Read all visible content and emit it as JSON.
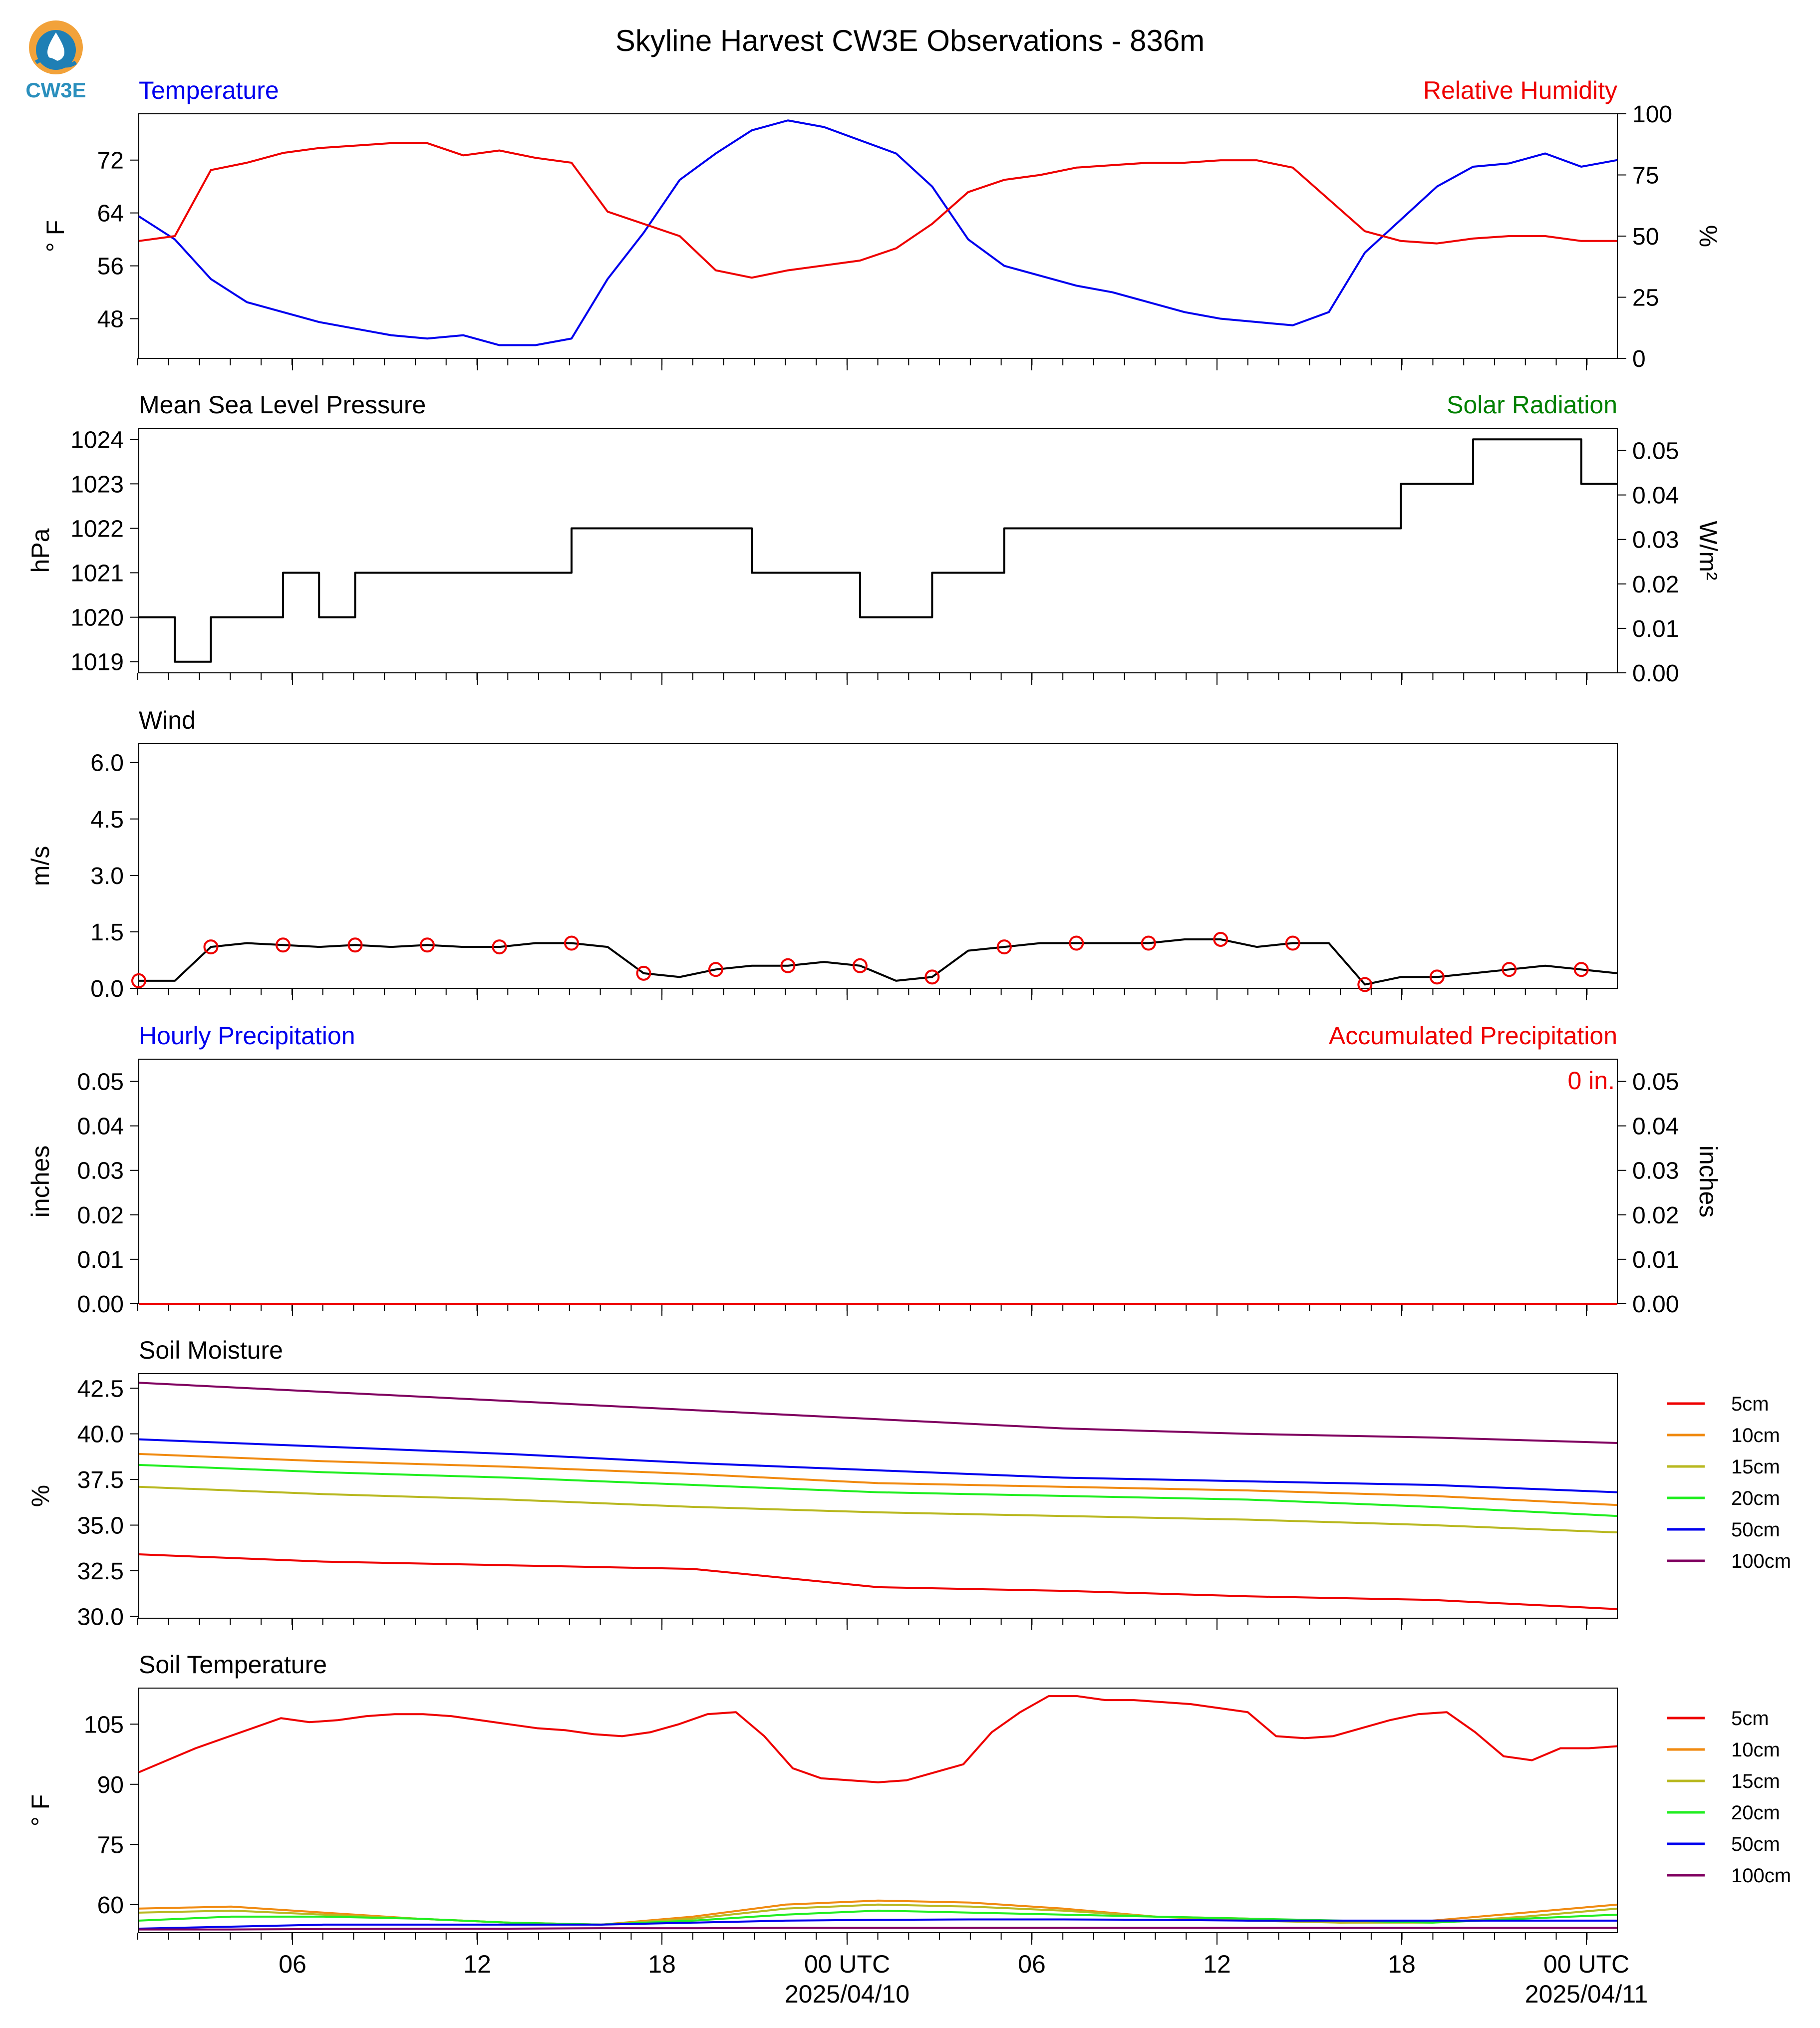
{
  "figure": {
    "title": "Skyline Harvest CW3E Observations - 836m",
    "logo_text": "CW3E",
    "logo_icon": "water-drop-logo-icon"
  },
  "time_axis": {
    "ticks": [
      {
        "label": "06",
        "date": ""
      },
      {
        "label": "12",
        "date": ""
      },
      {
        "label": "18",
        "date": ""
      },
      {
        "label": "00 UTC",
        "date": "2025/04/10"
      },
      {
        "label": "06",
        "date": ""
      },
      {
        "label": "12",
        "date": ""
      },
      {
        "label": "18",
        "date": ""
      },
      {
        "label": "00 UTC",
        "date": "2025/04/11"
      }
    ]
  },
  "chart_data": [
    {
      "type": "line",
      "title_left": "Temperature",
      "title_right": "Relative Humidity",
      "ylabel_left": "° F",
      "ylabel_right": "%",
      "ylim_left": [
        42,
        79
      ],
      "yticks_left": [
        48,
        56,
        64,
        72
      ],
      "ylim_right": [
        0,
        100
      ],
      "yticks_right": [
        0,
        25,
        50,
        75,
        100
      ],
      "grid": false,
      "series": [
        {
          "axis": "left",
          "color": "#0000ee",
          "values": [
            63.5,
            60,
            54,
            50.5,
            49,
            47.5,
            46.5,
            45.5,
            45,
            45.5,
            44,
            44,
            45,
            54,
            61,
            69,
            73,
            76.5,
            78,
            77,
            75,
            73,
            68,
            60,
            56,
            54.5,
            53,
            52,
            50.5,
            49,
            48,
            47.5,
            47,
            49,
            58,
            63,
            68,
            71,
            71.5,
            73,
            71,
            72
          ]
        },
        {
          "axis": "right",
          "color": "#ee0000",
          "values": [
            48,
            50,
            77,
            80,
            84,
            86,
            87,
            88,
            88,
            83,
            85,
            82,
            80,
            60,
            55,
            50,
            36,
            33,
            36,
            38,
            40,
            45,
            55,
            68,
            73,
            75,
            78,
            79,
            80,
            80,
            81,
            81,
            78,
            65,
            52,
            48,
            47,
            49,
            50,
            50,
            48,
            48
          ]
        }
      ]
    },
    {
      "type": "line",
      "title_left": "Mean Sea Level Pressure",
      "title_right": "Solar Radiation",
      "ylabel_left": "hPa",
      "ylabel_right": "W/m²",
      "ylim_left": [
        1018.75,
        1024.25
      ],
      "yticks_left": [
        1019,
        1020,
        1021,
        1022,
        1023,
        1024
      ],
      "ylim_right": [
        0,
        0.055
      ],
      "yticks_right": [
        "0.00",
        "0.01",
        "0.02",
        "0.03",
        "0.04",
        "0.05"
      ],
      "grid": false,
      "series": [
        {
          "axis": "left",
          "color": "#000000",
          "values": [
            1020,
            1019,
            1020,
            1020,
            1021,
            1020,
            1021,
            1021,
            1021,
            1021,
            1021,
            1021,
            1022,
            1022,
            1022,
            1022,
            1022,
            1021,
            1021,
            1021,
            1020,
            1020,
            1021,
            1021,
            1022,
            1022,
            1022,
            1022,
            1022,
            1022,
            1022,
            1022,
            1022,
            1022,
            1022,
            1023,
            1023,
            1024,
            1024,
            1024,
            1023,
            1023
          ]
        }
      ]
    },
    {
      "type": "line",
      "title_left": "Wind",
      "ylabel_left": "m/s",
      "ylim_left": [
        0,
        6.5
      ],
      "yticks_left": [
        "0.0",
        "1.5",
        "3.0",
        "4.5",
        "6.0"
      ],
      "grid": false,
      "series": [
        {
          "axis": "left",
          "color": "#000000",
          "values": [
            0.2,
            0.2,
            1.1,
            1.2,
            1.15,
            1.1,
            1.15,
            1.1,
            1.15,
            1.1,
            1.1,
            1.2,
            1.2,
            1.1,
            0.4,
            0.3,
            0.5,
            0.6,
            0.6,
            0.7,
            0.6,
            0.2,
            0.3,
            1.0,
            1.1,
            1.2,
            1.2,
            1.2,
            1.2,
            1.3,
            1.3,
            1.1,
            1.2,
            1.2,
            0.1,
            0.3,
            0.3,
            0.4,
            0.5,
            0.6,
            0.5,
            0.4
          ]
        }
      ]
    },
    {
      "type": "line",
      "title_left": "Hourly Precipitation",
      "title_right": "Accumulated Precipitation",
      "annotation": "0 in.",
      "ylabel_left": "inches",
      "ylabel_right": "inches",
      "ylim_left": [
        0,
        0.055
      ],
      "yticks_left": [
        "0.00",
        "0.01",
        "0.02",
        "0.03",
        "0.04",
        "0.05"
      ],
      "ylim_right": [
        0,
        0.055
      ],
      "yticks_right": [
        "0.00",
        "0.01",
        "0.02",
        "0.03",
        "0.04",
        "0.05"
      ],
      "grid": false,
      "series": [
        {
          "axis": "left",
          "color": "#0000ee",
          "values": [
            0,
            0
          ]
        },
        {
          "axis": "right",
          "color": "#ee0000",
          "values": [
            0,
            0
          ]
        }
      ]
    },
    {
      "type": "line",
      "title_left": "Soil Moisture",
      "ylabel_left": "%",
      "ylim_left": [
        29.9,
        43.3
      ],
      "yticks_left": [
        "30.0",
        "32.5",
        "35.0",
        "37.5",
        "40.0",
        "42.5"
      ],
      "legend": "right",
      "grid": false,
      "series": [
        {
          "name": "5cm",
          "color": "#ee0000",
          "values": [
            33.4,
            33.0,
            32.8,
            32.6,
            31.6,
            31.4,
            31.1,
            30.9,
            30.4
          ]
        },
        {
          "name": "10cm",
          "color": "#f08a10",
          "values": [
            38.9,
            38.5,
            38.2,
            37.8,
            37.3,
            37.1,
            36.9,
            36.6,
            36.1
          ]
        },
        {
          "name": "15cm",
          "color": "#b8b820",
          "values": [
            37.1,
            36.7,
            36.4,
            36.0,
            35.7,
            35.5,
            35.3,
            35.0,
            34.6
          ]
        },
        {
          "name": "20cm",
          "color": "#20ee20",
          "values": [
            38.3,
            37.9,
            37.6,
            37.2,
            36.8,
            36.6,
            36.4,
            36.0,
            35.5
          ]
        },
        {
          "name": "50cm",
          "color": "#0000ee",
          "values": [
            39.7,
            39.3,
            38.9,
            38.4,
            38.0,
            37.6,
            37.4,
            37.2,
            36.8
          ]
        },
        {
          "name": "100cm",
          "color": "#800060",
          "values": [
            42.8,
            42.3,
            41.8,
            41.3,
            40.8,
            40.3,
            40.0,
            39.8,
            39.5
          ]
        }
      ]
    },
    {
      "type": "line",
      "title_left": "Soil Temperature",
      "ylabel_left": "° F",
      "ylim_left": [
        53,
        114
      ],
      "yticks_left": [
        60,
        75,
        90,
        105
      ],
      "legend": "right",
      "grid": false,
      "series": [
        {
          "name": "5cm",
          "color": "#ee0000",
          "values": [
            93,
            96,
            99,
            101.5,
            104,
            106.5,
            105.5,
            106,
            107,
            107.5,
            107.5,
            107,
            106,
            105,
            104,
            103.5,
            102.5,
            102,
            103,
            105,
            107.5,
            108,
            102,
            94,
            91.5,
            91,
            90.5,
            91,
            93,
            95,
            103,
            108,
            112,
            112,
            111,
            111,
            110.5,
            110,
            109,
            108,
            102,
            101.5,
            102,
            104,
            106,
            107.5,
            108,
            103,
            97,
            96,
            99,
            99,
            99.5
          ]
        },
        {
          "name": "10cm",
          "color": "#f08a10",
          "values": [
            59,
            59.5,
            58,
            56.5,
            55.5,
            55,
            57,
            60,
            61,
            60.5,
            59,
            57,
            56.5,
            55.5,
            56,
            58,
            60
          ]
        },
        {
          "name": "15cm",
          "color": "#b8b820",
          "values": [
            58,
            58.5,
            57.5,
            56.5,
            55.5,
            55,
            56.5,
            59,
            60,
            59.5,
            58.5,
            57,
            56,
            55.5,
            55.5,
            57,
            59
          ]
        },
        {
          "name": "20cm",
          "color": "#20ee20",
          "values": [
            56,
            57,
            57,
            56.5,
            55.5,
            55,
            56,
            57.5,
            58.5,
            58,
            57.5,
            57,
            56.5,
            56,
            55.5,
            56.5,
            57.5
          ]
        },
        {
          "name": "50cm",
          "color": "#0000ee",
          "values": [
            54,
            54.5,
            55,
            55,
            55,
            55,
            55.5,
            56,
            56.2,
            56.3,
            56.3,
            56.2,
            56,
            56,
            56,
            56,
            56
          ]
        },
        {
          "name": "100cm",
          "color": "#800060",
          "values": [
            53.8,
            53.8,
            53.9,
            54,
            54,
            54.1,
            54.1,
            54.2,
            54.2,
            54.2,
            54.2,
            54.2,
            54.2,
            54.2,
            54.2,
            54.2,
            54.2
          ]
        }
      ]
    }
  ]
}
